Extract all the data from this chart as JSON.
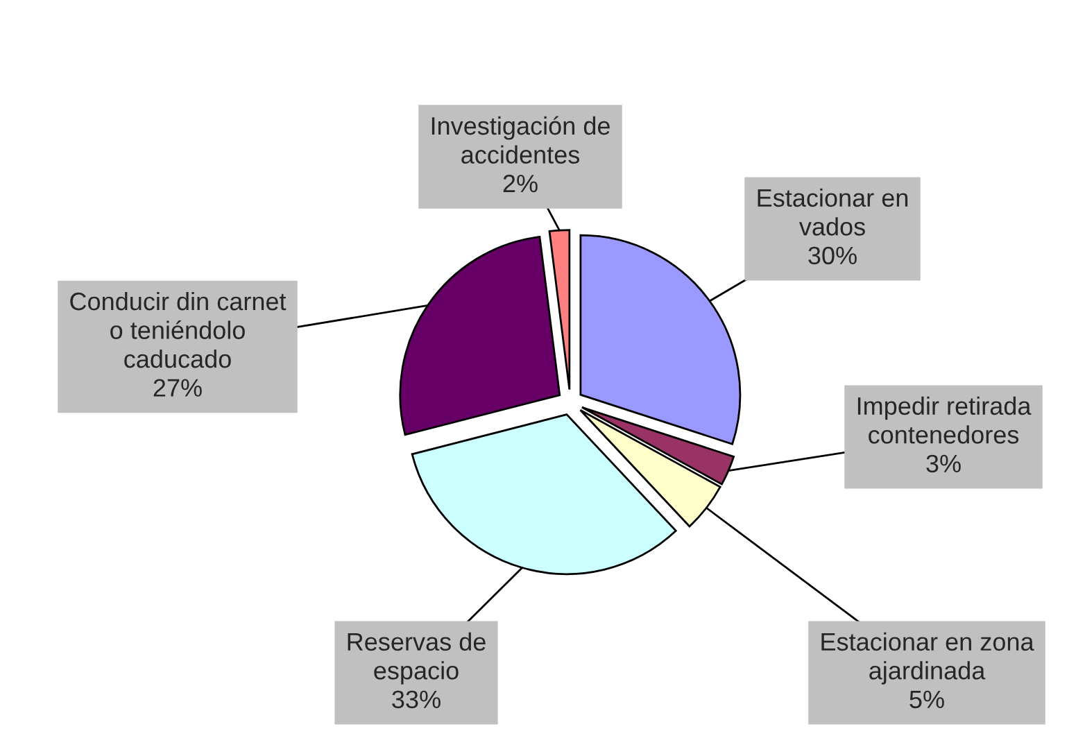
{
  "chart_data": {
    "type": "pie",
    "categories": [
      "Estacionar en\nvados",
      "Impedir retirada\ncontenedores",
      "Estacionar en zona\najardinada",
      "Reservas de\nespacio",
      "Conducir din carnet\no teniéndolo\ncaducado",
      "Investigación de\naccidentes"
    ],
    "values": [
      30,
      3,
      5,
      33,
      27,
      2
    ],
    "value_labels": [
      "30%",
      "3%",
      "5%",
      "33%",
      "27%",
      "2%"
    ],
    "colors": [
      "#9999ff",
      "#993366",
      "#ffffcc",
      "#ccffff",
      "#660066",
      "#ff8080"
    ]
  }
}
